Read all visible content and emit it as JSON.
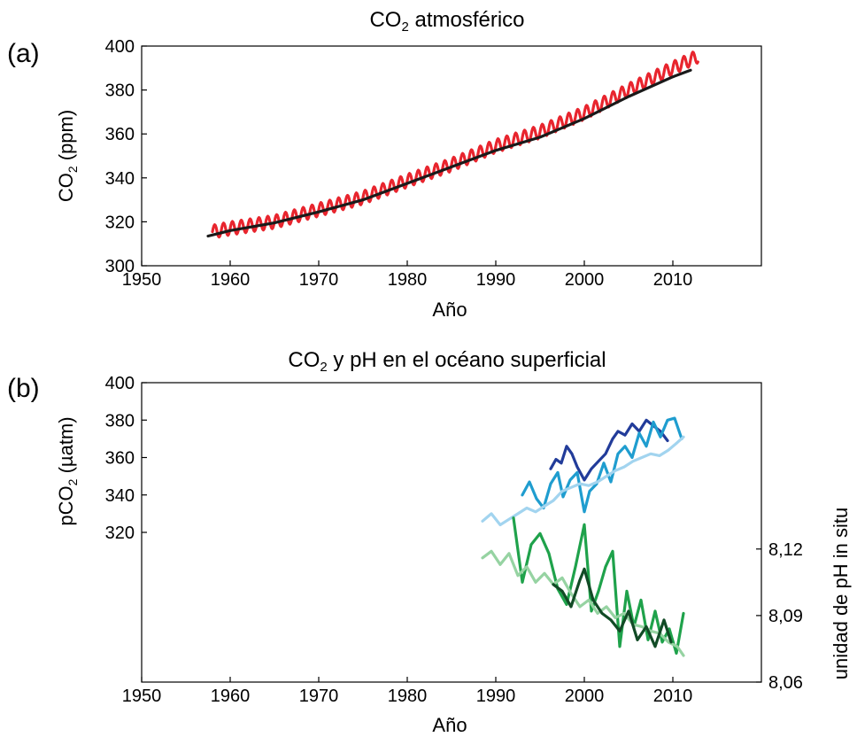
{
  "chart_data": [
    {
      "type": "line",
      "panel_label": "(a)",
      "title_main": "CO",
      "title_sub": "2",
      "title_rest": " atmosférico",
      "xlabel": "Año",
      "ylabel_main": "CO",
      "ylabel_sub": "2",
      "ylabel_rest": " (ppm)",
      "xlim": [
        1950,
        2020
      ],
      "ylim": [
        300,
        400
      ],
      "xticks": [
        1950,
        1960,
        1970,
        1980,
        1990,
        2000,
        2010
      ],
      "yticks": [
        300,
        320,
        340,
        360,
        380,
        400
      ],
      "series": [
        {
          "color": "#e8252e",
          "seasonal_amplitude": 3,
          "x": [
            1958,
            1960,
            1965,
            1970,
            1975,
            1980,
            1985,
            1990,
            1995,
            2000,
            2005,
            2010,
            2012.9
          ],
          "values": [
            315.5,
            317,
            320,
            325.5,
            331,
            338.7,
            346,
            354.5,
            361,
            369.5,
            380,
            390,
            395.5
          ]
        },
        {
          "color": "#1a1a1a",
          "x": [
            1957.5,
            1960,
            1965,
            1970,
            1975,
            1980,
            1985,
            1990,
            1995,
            2000,
            2005,
            2010,
            2012
          ],
          "values": [
            313.5,
            316,
            319.5,
            324.5,
            330,
            337.5,
            345,
            352.5,
            358.5,
            367,
            377,
            386,
            389
          ]
        }
      ]
    },
    {
      "type": "line",
      "panel_label": "(b)",
      "title_main": "CO",
      "title_sub": "2",
      "title_rest": " y pH en el océano superficial",
      "xlabel": "Año",
      "ylabel_main": "pCO",
      "ylabel_sub": "2",
      "ylabel_rest": " (µatm)",
      "ylabel_right": "unidad de pH in situ",
      "xlim": [
        1950,
        2020
      ],
      "ylim": [
        240,
        400
      ],
      "ylim_right": [
        8.06,
        8.195
      ],
      "xticks": [
        1950,
        1960,
        1970,
        1980,
        1990,
        2000,
        2010
      ],
      "yticks": [
        320,
        340,
        360,
        380,
        400
      ],
      "yticks_right": [
        "8,06",
        "8,09",
        "8,12"
      ],
      "yticks_right_values": [
        8.06,
        8.09,
        8.12
      ],
      "series": [
        {
          "color": "#223c9a",
          "axis": "left",
          "x": [
            1996.2,
            1996.8,
            1997.4,
            1998,
            1998.6,
            1999.2,
            2000,
            2000.8,
            2001.6,
            2002.4,
            2003.2,
            2003.8,
            2004.6,
            2005.4,
            2006.2,
            2007,
            2007.8,
            2008.6,
            2009.4
          ],
          "values": [
            354,
            359,
            357,
            366,
            362,
            355,
            348,
            354,
            358,
            362,
            370,
            374,
            372,
            378,
            374,
            380,
            377,
            374,
            369
          ]
        },
        {
          "color": "#1f9dcf",
          "axis": "left",
          "x": [
            1993,
            1993.8,
            1994.6,
            1995.4,
            1996.2,
            1997,
            1997.6,
            1998.4,
            1999.2,
            2000,
            2000.6,
            2001.4,
            2002.2,
            2003,
            2003.8,
            2004.6,
            2005.4,
            2006.2,
            2007,
            2007.8,
            2008.6,
            2009.4,
            2010.2,
            2011
          ],
          "values": [
            340,
            347,
            338,
            333,
            346,
            352,
            339,
            348,
            352,
            331,
            342,
            346,
            357,
            347,
            362,
            366,
            360,
            373,
            366,
            379,
            371,
            380,
            381,
            370
          ]
        },
        {
          "color": "#a2d4ef",
          "axis": "left",
          "x": [
            1988.5,
            1989.5,
            1990.5,
            1991.5,
            1992.5,
            1993.5,
            1994.5,
            1995.5,
            1996.5,
            1997.5,
            1998.5,
            1999.5,
            2000.5,
            2001.5,
            2002.5,
            2003.5,
            2004.5,
            2005.5,
            2006.5,
            2007.5,
            2008.5,
            2009.5,
            2010.5,
            2011.2
          ],
          "values": [
            326,
            330,
            324,
            327,
            330,
            333,
            331,
            334,
            337,
            342,
            344,
            346,
            345,
            347,
            350,
            353,
            355,
            358,
            360,
            362,
            361,
            364,
            368,
            371
          ]
        },
        {
          "color": "#1fa24b",
          "axis": "right",
          "x": [
            1992,
            1993,
            1994,
            1995,
            1996,
            1997,
            1998,
            1999,
            2000,
            2000.8,
            2001.6,
            2002.4,
            2003.2,
            2004,
            2004.8,
            2005.6,
            2006.4,
            2007.2,
            2008,
            2008.8,
            2009.6,
            2010.4,
            2011.2
          ],
          "values": [
            8.134,
            8.105,
            8.122,
            8.127,
            8.118,
            8.102,
            8.095,
            8.112,
            8.131,
            8.092,
            8.101,
            8.112,
            8.119,
            8.076,
            8.101,
            8.085,
            8.097,
            8.079,
            8.092,
            8.078,
            8.084,
            8.073,
            8.091
          ]
        },
        {
          "color": "#96d3a2",
          "axis": "right",
          "x": [
            1988.5,
            1989.5,
            1990.5,
            1991.5,
            1992.5,
            1993.5,
            1994.5,
            1995.5,
            1996.5,
            1997.5,
            1998.5,
            1999.5,
            2000.5,
            2001.5,
            2002.5,
            2003.5,
            2004.5,
            2005.5,
            2006.5,
            2007.5,
            2008.5,
            2009.5,
            2010.5,
            2011.2
          ],
          "values": [
            8.116,
            8.119,
            8.113,
            8.118,
            8.108,
            8.112,
            8.105,
            8.109,
            8.104,
            8.107,
            8.1,
            8.094,
            8.097,
            8.091,
            8.094,
            8.089,
            8.091,
            8.086,
            8.085,
            8.083,
            8.082,
            8.078,
            8.076,
            8.072
          ]
        },
        {
          "color": "#124b26",
          "axis": "right",
          "x": [
            1996.5,
            1997.5,
            1998.5,
            1999.5,
            2000,
            2001,
            2002,
            2003,
            2004,
            2005,
            2006,
            2007,
            2008,
            2009,
            2009.8
          ],
          "values": [
            8.104,
            8.101,
            8.094,
            8.106,
            8.111,
            8.097,
            8.091,
            8.088,
            8.083,
            8.092,
            8.079,
            8.085,
            8.076,
            8.088,
            8.078
          ]
        }
      ]
    }
  ]
}
